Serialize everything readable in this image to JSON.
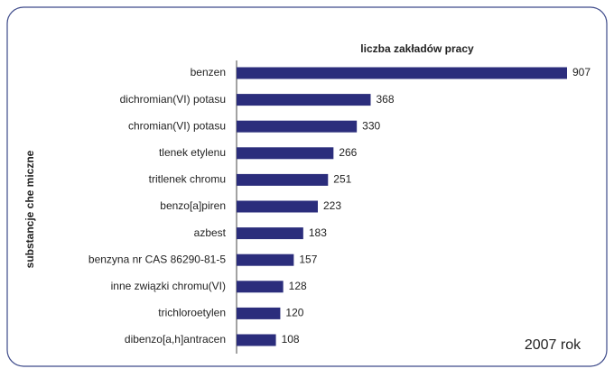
{
  "chart_data": {
    "type": "bar",
    "orientation": "horizontal",
    "title": "liczba zakładów pracy",
    "y_label": "substancje che miczne",
    "annotation": "2007 rok",
    "categories": [
      "benzen",
      "dichromian(VI) potasu",
      "chromian(VI) potasu",
      "tlenek etylenu",
      "tritlenek chromu",
      "benzo[a]piren",
      "azbest",
      "benzyna nr CAS 86290-81-5",
      "inne związki chromu(VI)",
      "trichloroetylen",
      "dibenzo[a,h]antracen"
    ],
    "values": [
      907,
      368,
      330,
      266,
      251,
      223,
      183,
      157,
      128,
      120,
      108
    ],
    "color": "#2b2d7c"
  }
}
